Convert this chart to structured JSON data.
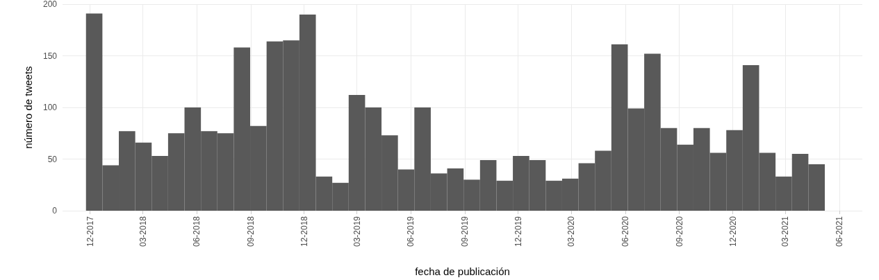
{
  "chart_data": {
    "type": "histogram",
    "xlabel": "fecha de publicación",
    "ylabel": "número de tweets",
    "color": "#595959",
    "bins": [
      "2017-11-24",
      "2017-12-22",
      "2018-01-19",
      "2018-02-16",
      "2018-03-16",
      "2018-04-13",
      "2018-05-11",
      "2018-06-08",
      "2018-07-06",
      "2018-08-03",
      "2018-08-31",
      "2018-09-28",
      "2018-10-26",
      "2018-11-23",
      "2018-12-21",
      "2019-01-18",
      "2019-02-15",
      "2019-03-15",
      "2019-04-12",
      "2019-05-10",
      "2019-06-07",
      "2019-07-05",
      "2019-08-02",
      "2019-08-30",
      "2019-09-27",
      "2019-10-25",
      "2019-11-22",
      "2019-12-20",
      "2020-01-17",
      "2020-02-14",
      "2020-03-13",
      "2020-04-10",
      "2020-05-08",
      "2020-06-05",
      "2020-07-03",
      "2020-07-31",
      "2020-08-28",
      "2020-09-25",
      "2020-10-23",
      "2020-11-20",
      "2020-12-18",
      "2021-01-15",
      "2021-02-12",
      "2021-03-12",
      "2021-04-09",
      "2021-05-07"
    ],
    "values": [
      191,
      44,
      77,
      66,
      53,
      75,
      100,
      77,
      75,
      158,
      82,
      164,
      165,
      190,
      33,
      27,
      112,
      100,
      73,
      40,
      100,
      36,
      41,
      30,
      49,
      29,
      53,
      49,
      29,
      31,
      46,
      58,
      161,
      99,
      152,
      80,
      64,
      80,
      56,
      78,
      141,
      56,
      33,
      55,
      45
    ],
    "xlim": [
      "2017-10-15",
      "2021-07-10"
    ],
    "xticks": [
      {
        "value": "2017-12",
        "label": "12-2017"
      },
      {
        "value": "2018-03",
        "label": "03-2018"
      },
      {
        "value": "2018-06",
        "label": "06-2018"
      },
      {
        "value": "2018-09",
        "label": "09-2018"
      },
      {
        "value": "2018-12",
        "label": "12-2018"
      },
      {
        "value": "2019-03",
        "label": "03-2019"
      },
      {
        "value": "2019-06",
        "label": "06-2019"
      },
      {
        "value": "2019-09",
        "label": "09-2019"
      },
      {
        "value": "2019-12",
        "label": "12-2019"
      },
      {
        "value": "2020-03",
        "label": "03-2020"
      },
      {
        "value": "2020-06",
        "label": "06-2020"
      },
      {
        "value": "2020-09",
        "label": "09-2020"
      },
      {
        "value": "2020-12",
        "label": "12-2020"
      },
      {
        "value": "2021-03",
        "label": "03-2021"
      },
      {
        "value": "2021-06",
        "label": "06-2021"
      }
    ],
    "ylim": [
      0,
      200
    ],
    "yticks": [
      0,
      50,
      100,
      150,
      200
    ],
    "grid": true
  }
}
